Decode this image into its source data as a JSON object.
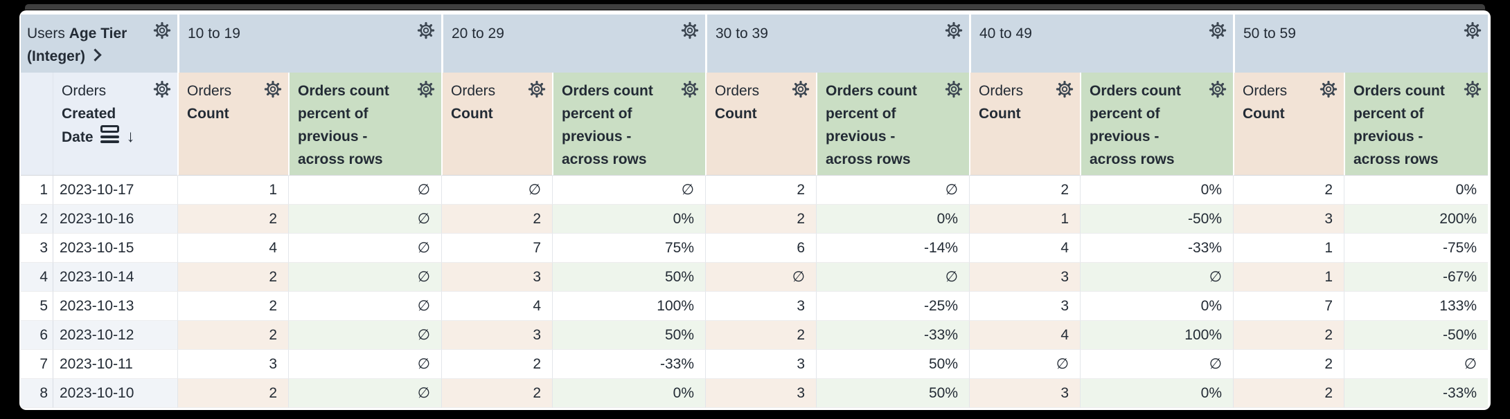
{
  "corner_header": {
    "view": "Users",
    "field": "Age Tier",
    "type_suffix": "(Integer)"
  },
  "row_field_header": {
    "view": "Orders",
    "field": "Created Date"
  },
  "icons": {
    "sort_desc": "↓",
    "gear": "settings-gear",
    "subtotal": "subtotals",
    "expand": "chevron-right"
  },
  "pivot_values": [
    "10 to 19",
    "20 to 29",
    "30 to 39",
    "40 to 49",
    "50 to 59"
  ],
  "measures": {
    "count": {
      "view": "Orders",
      "field": "Count"
    },
    "percent": {
      "label": "Orders count percent of previous - across rows"
    }
  },
  "null_symbol": "∅",
  "rows": [
    {
      "index": "1",
      "date": "2023-10-17",
      "values": [
        "1",
        "∅",
        "∅",
        "∅",
        "2",
        "∅",
        "2",
        "0%",
        "2",
        "0%"
      ]
    },
    {
      "index": "2",
      "date": "2023-10-16",
      "values": [
        "2",
        "∅",
        "2",
        "0%",
        "2",
        "0%",
        "1",
        "-50%",
        "3",
        "200%"
      ]
    },
    {
      "index": "3",
      "date": "2023-10-15",
      "values": [
        "4",
        "∅",
        "7",
        "75%",
        "6",
        "-14%",
        "4",
        "-33%",
        "1",
        "-75%"
      ]
    },
    {
      "index": "4",
      "date": "2023-10-14",
      "values": [
        "2",
        "∅",
        "3",
        "50%",
        "∅",
        "∅",
        "3",
        "∅",
        "1",
        "-67%"
      ]
    },
    {
      "index": "5",
      "date": "2023-10-13",
      "values": [
        "2",
        "∅",
        "4",
        "100%",
        "3",
        "-25%",
        "3",
        "0%",
        "7",
        "133%"
      ]
    },
    {
      "index": "6",
      "date": "2023-10-12",
      "values": [
        "2",
        "∅",
        "3",
        "50%",
        "2",
        "-33%",
        "4",
        "100%",
        "2",
        "-50%"
      ]
    },
    {
      "index": "7",
      "date": "2023-10-11",
      "values": [
        "3",
        "∅",
        "2",
        "-33%",
        "3",
        "50%",
        "∅",
        "∅",
        "2",
        "∅"
      ]
    },
    {
      "index": "8",
      "date": "2023-10-10",
      "values": [
        "2",
        "∅",
        "2",
        "0%",
        "3",
        "50%",
        "3",
        "0%",
        "2",
        "-33%"
      ]
    }
  ],
  "colors": {
    "pivot_header_bg": "#cdd9e4",
    "count_header_bg": "#f2e3d6",
    "percent_header_bg": "#cadec4",
    "row_header_bg": "#e9eef6",
    "stripe_row_header": "#f1f4f8",
    "stripe_count": "#f7eee6",
    "stripe_percent": "#eef5ec",
    "text": "#232b35"
  }
}
